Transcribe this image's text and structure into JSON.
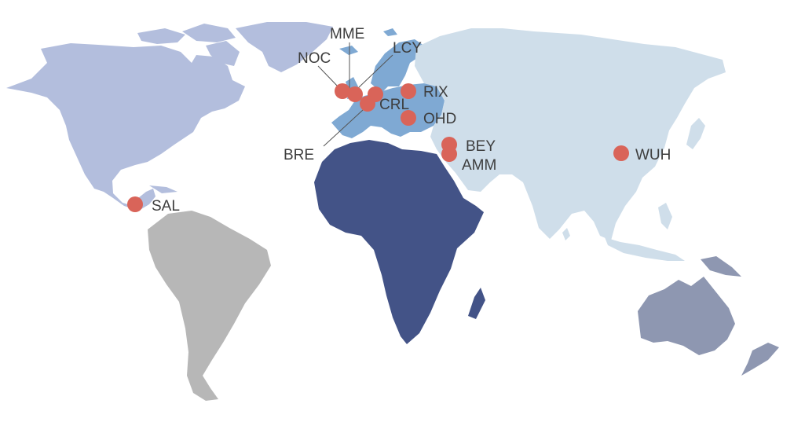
{
  "colors": {
    "north_america": "#b3bedd",
    "south_america": "#b7b7b7",
    "europe": "#7fa9d3",
    "africa": "#435387",
    "asia": "#cfdeea",
    "oceania": "#8e97b1",
    "marker": "#d96459",
    "label": "#3d3d3d"
  },
  "airports": [
    {
      "code": "MME"
    },
    {
      "code": "LCY"
    },
    {
      "code": "NOC"
    },
    {
      "code": "RIX"
    },
    {
      "code": "CRL"
    },
    {
      "code": "OHD"
    },
    {
      "code": "BRE"
    },
    {
      "code": "BEY"
    },
    {
      "code": "AMM"
    },
    {
      "code": "WUH"
    },
    {
      "code": "SAL"
    }
  ]
}
